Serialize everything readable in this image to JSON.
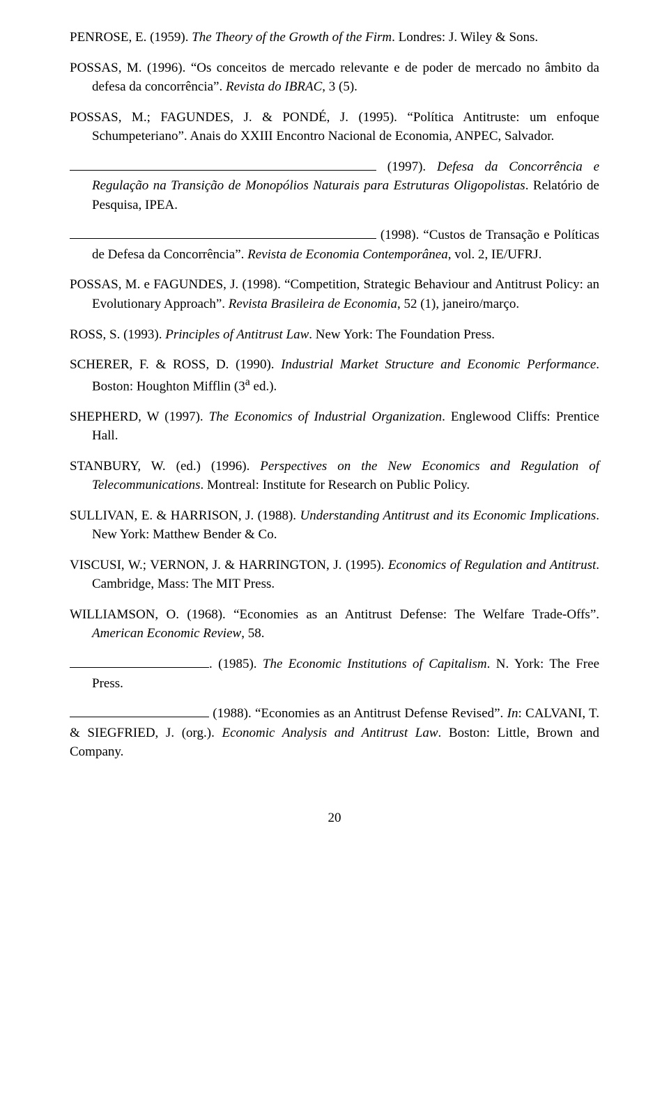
{
  "refs": [
    {
      "segments": [
        {
          "t": "PENROSE, E. (1959). "
        },
        {
          "t": "The Theory of the Growth of the Firm",
          "i": true
        },
        {
          "t": ". Londres: J. Wiley & Sons."
        }
      ]
    },
    {
      "segments": [
        {
          "t": "POSSAS, M. (1996). “Os conceitos de mercado relevante e de poder de mercado no âmbito da defesa da concorrência”. "
        },
        {
          "t": "Revista do IBRAC",
          "i": true
        },
        {
          "t": ", 3 (5)."
        }
      ]
    },
    {
      "segments": [
        {
          "t": "POSSAS, M.; FAGUNDES, J. & PONDÉ, J. (1995). “Política Antitruste: um enfoque Schumpeteriano”. Anais do XXIII Encontro Nacional de Economia, ANPEC, Salvador."
        }
      ]
    },
    {
      "segments": [
        {
          "blank": 440
        },
        {
          "t": " (1997). "
        },
        {
          "t": "Defesa da Concorrência e Regulação na Transição de Monopólios Naturais para Estruturas Oligopolistas",
          "i": true
        },
        {
          "t": ". Relatório de Pesquisa, IPEA."
        }
      ]
    },
    {
      "segments": [
        {
          "blank": 440
        },
        {
          "t": " (1998). “Custos de Transação e Políticas de Defesa da Concorrência”. "
        },
        {
          "t": "Revista de Economia Contemporânea",
          "i": true
        },
        {
          "t": ", vol. 2, IE/UFRJ."
        }
      ]
    },
    {
      "segments": [
        {
          "t": "POSSAS, M. e FAGUNDES, J. (1998). “Competition, Strategic Behaviour and Antitrust Policy: an Evolutionary Approach”. "
        },
        {
          "t": "Revista Brasileira de Economia",
          "i": true
        },
        {
          "t": ", 52 (1), janeiro/março."
        }
      ]
    },
    {
      "segments": [
        {
          "t": "ROSS, S. (1993). "
        },
        {
          "t": "Principles of Antitrust Law",
          "i": true
        },
        {
          "t": ". New York: The Foundation Press."
        }
      ]
    },
    {
      "segments": [
        {
          "t": "SCHERER, F. & ROSS, D. (1990). "
        },
        {
          "t": "Industrial Market Structure and Economic Performance",
          "i": true
        },
        {
          "t": ". Boston: Houghton Mifflin (3"
        },
        {
          "t": "a",
          "sup": true
        },
        {
          "t": " ed.)."
        }
      ]
    },
    {
      "segments": [
        {
          "t": "SHEPHERD, W (1997). "
        },
        {
          "t": "The Economics of Industrial Organization",
          "i": true
        },
        {
          "t": ". Englewood Cliffs: Prentice Hall."
        }
      ]
    },
    {
      "segments": [
        {
          "t": "STANBURY, W. (ed.) (1996). "
        },
        {
          "t": "Perspectives on the New Economics and Regulation of Telecommunications",
          "i": true
        },
        {
          "t": ". Montreal: Institute for Research on Public Policy."
        }
      ]
    },
    {
      "segments": [
        {
          "t": "SULLIVAN, E. & HARRISON, J. (1988). "
        },
        {
          "t": "Understanding Antitrust and its Economic Implications",
          "i": true
        },
        {
          "t": ". New York: Matthew Bender & Co."
        }
      ]
    },
    {
      "segments": [
        {
          "t": "VISCUSI, W.; VERNON, J. & HARRINGTON, J. (1995). "
        },
        {
          "t": "Economics of Regulation and Antitrust",
          "i": true
        },
        {
          "t": ". Cambridge, Mass: The MIT Press."
        }
      ]
    },
    {
      "segments": [
        {
          "t": "WILLIAMSON, O. (1968). “Economies as an Antitrust Defense: The Welfare Trade-Offs”. "
        },
        {
          "t": "American Economic Review",
          "i": true
        },
        {
          "t": ", 58."
        }
      ]
    },
    {
      "segments": [
        {
          "blank": 200
        },
        {
          "t": ". (1985). "
        },
        {
          "t": "The Economic Institutions of Capitalism",
          "i": true
        },
        {
          "t": ". N. York: The Free Press."
        }
      ]
    },
    {
      "noindent": true,
      "segments": [
        {
          "blank": 200
        },
        {
          "t": " (1988). “Economies as an Antitrust Defense Revised”. "
        },
        {
          "t": "In",
          "i": true
        },
        {
          "t": ": CALVANI, T. & SIEGFRIED, J. (org.). "
        },
        {
          "t": "Economic Analysis and Antitrust Law",
          "i": true
        },
        {
          "t": ". Boston: Little, Brown and Company."
        }
      ]
    }
  ],
  "pageNumber": "20"
}
